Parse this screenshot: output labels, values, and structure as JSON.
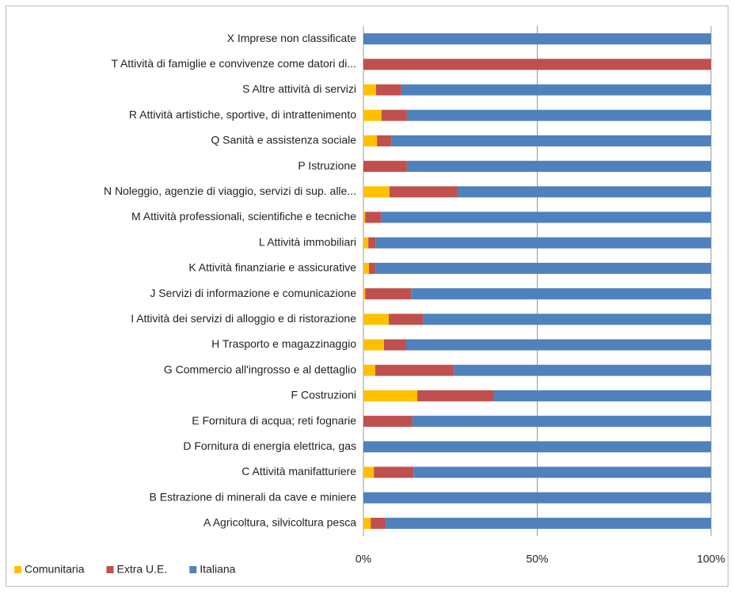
{
  "chart_data": {
    "type": "stacked_barh",
    "categories": [
      "X Imprese non classificate",
      "T Attività di famiglie e convivenze come datori di...",
      "S Altre attività di servizi",
      "R Attività artistiche, sportive, di intrattenimento",
      "Q Sanità e assistenza sociale",
      "P Istruzione",
      "N Noleggio, agenzie di viaggio, servizi di sup. alle...",
      "M Attività professionali, scientifiche e tecniche",
      "L Attività immobiliari",
      "K Attività finanziarie e assicurative",
      "J Servizi di informazione e comunicazione",
      "I Attività dei servizi di alloggio e di ristorazione",
      "H Trasporto e magazzinaggio",
      "G Commercio all'ingrosso e al dettaglio",
      "F Costruzioni",
      "E Fornitura di acqua; reti fognarie",
      "D Fornitura di energia elettrica, gas",
      "C Attività manifatturiere",
      "B Estrazione di minerali da cave e miniere",
      "A Agricoltura, silvicoltura pesca"
    ],
    "series": [
      {
        "name": "Comunitaria",
        "color": "#ffc000",
        "values": [
          0,
          0,
          3.6,
          5.2,
          3.9,
          0,
          7.5,
          0.5,
          1.4,
          1.6,
          0.5,
          7.3,
          5.9,
          3.4,
          15.5,
          0,
          0,
          3.0,
          0,
          2.1
        ]
      },
      {
        "name": "Extra U.E.",
        "color": "#c0504d",
        "values": [
          0,
          100,
          7.3,
          7.3,
          4.1,
          12.5,
          19.6,
          4.6,
          2.1,
          2.0,
          13.2,
          9.8,
          6.4,
          22.6,
          22.1,
          14.1,
          0,
          11.4,
          0,
          4.3
        ]
      },
      {
        "name": "Italiana",
        "color": "#4f81bd",
        "values": [
          100,
          0,
          89.1,
          87.5,
          92.0,
          87.5,
          72.9,
          94.9,
          96.5,
          96.4,
          86.3,
          82.9,
          87.7,
          74.0,
          62.4,
          85.9,
          100,
          85.6,
          100,
          93.6
        ]
      }
    ],
    "xlim": [
      0,
      100
    ],
    "xticks": [
      {
        "value": 0,
        "label": "0%"
      },
      {
        "value": 50,
        "label": "50%"
      },
      {
        "value": 100,
        "label": "100%"
      }
    ],
    "grid": true,
    "legend": "bottom-left"
  }
}
